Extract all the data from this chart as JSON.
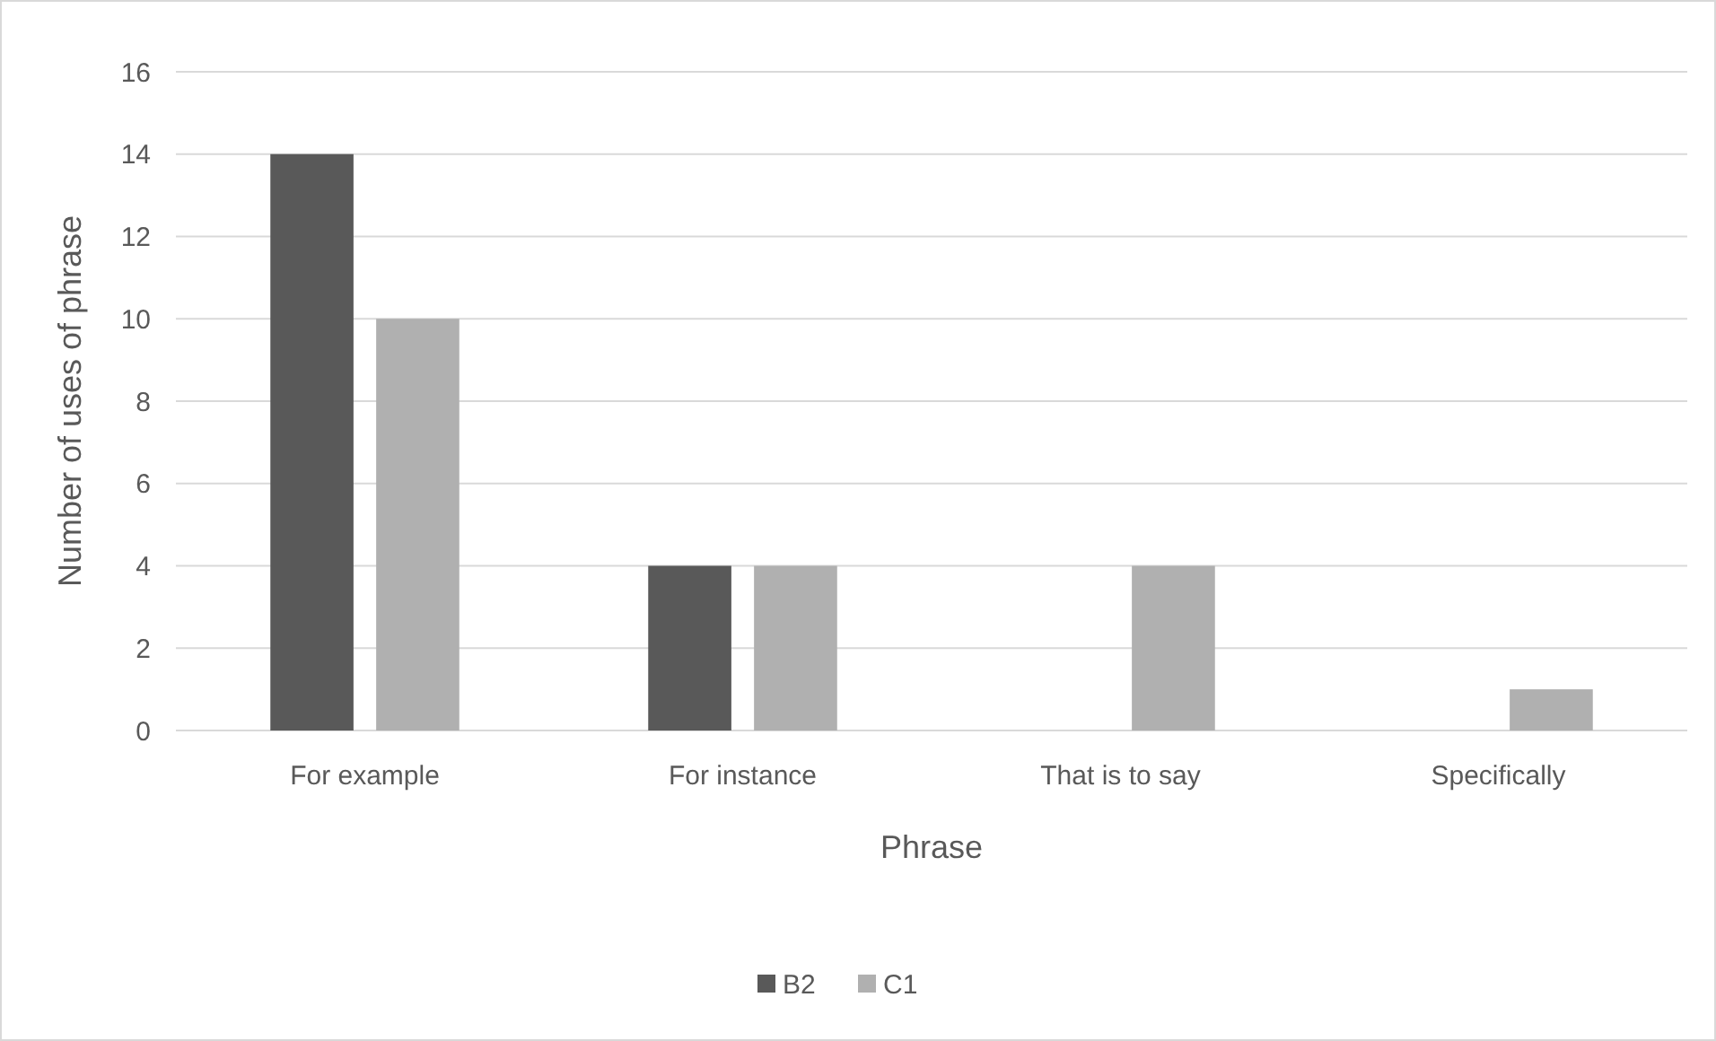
{
  "chart_data": {
    "type": "bar",
    "xlabel": "Phrase",
    "ylabel": "Number of uses of phrase",
    "categories": [
      "For example",
      "For instance",
      "That is to say",
      "Specifically"
    ],
    "series": [
      {
        "name": "B2",
        "color": "#595959",
        "values": [
          14,
          4,
          0,
          0
        ]
      },
      {
        "name": "C1",
        "color": "#b0b0b0",
        "values": [
          10,
          4,
          4,
          1
        ]
      }
    ],
    "ylim": [
      0,
      16
    ],
    "yticks": [
      0,
      2,
      4,
      6,
      8,
      10,
      12,
      14,
      16
    ],
    "grid": "y",
    "legend": "bottom"
  }
}
